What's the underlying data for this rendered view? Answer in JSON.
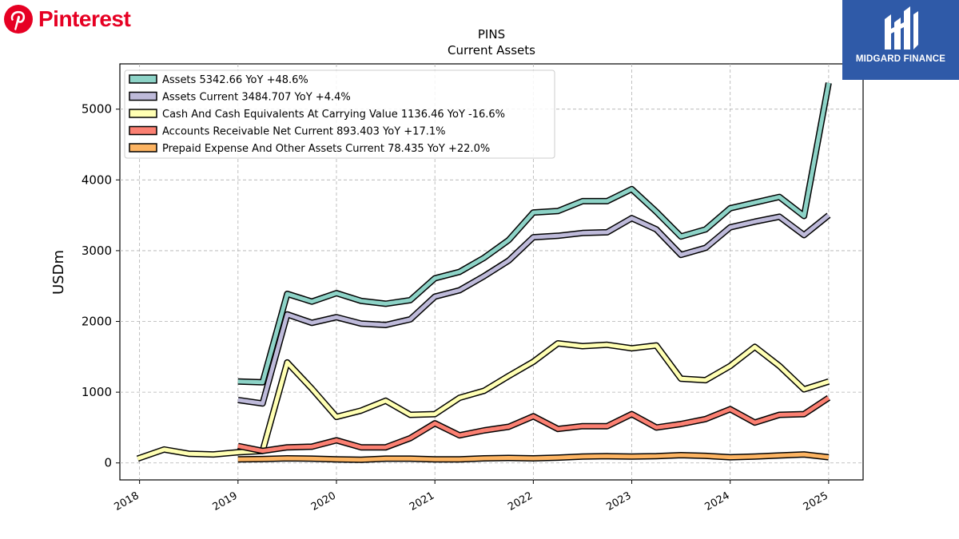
{
  "brand": {
    "name": "Pinterest",
    "color": "#e60023",
    "icon": "pinterest-logo-icon"
  },
  "badge": {
    "text": "MIDGARD FINANCE",
    "color": "#2f5aa8",
    "icon": "midgard-logo-icon"
  },
  "chart_data": {
    "type": "line",
    "title": "PINS",
    "subtitle": "Current  Assets",
    "ylabel": "USDm",
    "xlabel": "",
    "ylim": [
      -240,
      5640
    ],
    "xlim": [
      2017.8,
      2025.35
    ],
    "yticks": [
      0,
      1000,
      2000,
      3000,
      4000,
      5000
    ],
    "xticks": [
      2018,
      2019,
      2020,
      2021,
      2022,
      2023,
      2024,
      2025
    ],
    "xtick_labels": [
      "2018",
      "2019",
      "2020",
      "2021",
      "2022",
      "2023",
      "2024",
      "2025"
    ],
    "grid": true,
    "legend_position": "top-left",
    "series": [
      {
        "name": "Assets",
        "legend": "Assets  5342.66 YoY +48.6%",
        "color": "#8dd3c7",
        "points": [
          [
            2019.0,
            1150
          ],
          [
            2019.25,
            1140
          ],
          [
            2019.5,
            2390
          ],
          [
            2019.75,
            2280
          ],
          [
            2020.0,
            2400
          ],
          [
            2020.25,
            2290
          ],
          [
            2020.5,
            2250
          ],
          [
            2020.75,
            2300
          ],
          [
            2021.0,
            2610
          ],
          [
            2021.25,
            2700
          ],
          [
            2021.5,
            2900
          ],
          [
            2021.75,
            3150
          ],
          [
            2022.0,
            3540
          ],
          [
            2022.25,
            3560
          ],
          [
            2022.5,
            3700
          ],
          [
            2022.75,
            3700
          ],
          [
            2023.0,
            3870
          ],
          [
            2023.25,
            3550
          ],
          [
            2023.5,
            3200
          ],
          [
            2023.75,
            3300
          ],
          [
            2024.0,
            3600
          ],
          [
            2024.25,
            3680
          ],
          [
            2024.5,
            3760
          ],
          [
            2024.75,
            3490
          ],
          [
            2025.0,
            5370
          ]
        ]
      },
      {
        "name": "Assets Current",
        "legend": "Assets Current  3484.707 YoY +4.4%",
        "color": "#bebada",
        "points": [
          [
            2019.0,
            890
          ],
          [
            2019.25,
            840
          ],
          [
            2019.5,
            2100
          ],
          [
            2019.75,
            1980
          ],
          [
            2020.0,
            2060
          ],
          [
            2020.25,
            1970
          ],
          [
            2020.5,
            1950
          ],
          [
            2020.75,
            2030
          ],
          [
            2021.0,
            2350
          ],
          [
            2021.25,
            2440
          ],
          [
            2021.5,
            2640
          ],
          [
            2021.75,
            2860
          ],
          [
            2022.0,
            3190
          ],
          [
            2022.25,
            3210
          ],
          [
            2022.5,
            3250
          ],
          [
            2022.75,
            3260
          ],
          [
            2023.0,
            3460
          ],
          [
            2023.25,
            3300
          ],
          [
            2023.5,
            2940
          ],
          [
            2023.75,
            3040
          ],
          [
            2024.0,
            3330
          ],
          [
            2024.25,
            3410
          ],
          [
            2024.5,
            3480
          ],
          [
            2024.75,
            3220
          ],
          [
            2025.0,
            3500
          ]
        ]
      },
      {
        "name": "Cash And Cash Equivalents At Carrying Value",
        "legend": "Cash And Cash Equivalents At Carrying Value  1136.46 YoY -16.6%",
        "color": "#ffffb3",
        "points": [
          [
            2017.98,
            60
          ],
          [
            2018.25,
            190
          ],
          [
            2018.5,
            130
          ],
          [
            2018.75,
            120
          ],
          [
            2019.0,
            150
          ],
          [
            2019.25,
            170
          ],
          [
            2019.5,
            1420
          ],
          [
            2019.75,
            1050
          ],
          [
            2020.0,
            650
          ],
          [
            2020.25,
            740
          ],
          [
            2020.5,
            880
          ],
          [
            2020.75,
            680
          ],
          [
            2021.0,
            690
          ],
          [
            2021.25,
            920
          ],
          [
            2021.5,
            1020
          ],
          [
            2021.75,
            1230
          ],
          [
            2022.0,
            1430
          ],
          [
            2022.25,
            1690
          ],
          [
            2022.5,
            1650
          ],
          [
            2022.75,
            1670
          ],
          [
            2023.0,
            1620
          ],
          [
            2023.25,
            1660
          ],
          [
            2023.5,
            1190
          ],
          [
            2023.75,
            1170
          ],
          [
            2024.0,
            1370
          ],
          [
            2024.25,
            1640
          ],
          [
            2024.5,
            1370
          ],
          [
            2024.75,
            1040
          ],
          [
            2025.0,
            1150
          ]
        ]
      },
      {
        "name": "Accounts Receivable Net Current",
        "legend": "Accounts Receivable Net Current  893.403 YoY +17.1%",
        "color": "#fb8072",
        "points": [
          [
            2019.0,
            240
          ],
          [
            2019.25,
            170
          ],
          [
            2019.5,
            220
          ],
          [
            2019.75,
            230
          ],
          [
            2020.0,
            320
          ],
          [
            2020.25,
            220
          ],
          [
            2020.5,
            220
          ],
          [
            2020.75,
            350
          ],
          [
            2021.0,
            560
          ],
          [
            2021.25,
            390
          ],
          [
            2021.5,
            460
          ],
          [
            2021.75,
            510
          ],
          [
            2022.0,
            660
          ],
          [
            2022.25,
            480
          ],
          [
            2022.5,
            520
          ],
          [
            2022.75,
            520
          ],
          [
            2023.0,
            690
          ],
          [
            2023.25,
            500
          ],
          [
            2023.5,
            550
          ],
          [
            2023.75,
            620
          ],
          [
            2024.0,
            760
          ],
          [
            2024.25,
            570
          ],
          [
            2024.5,
            680
          ],
          [
            2024.75,
            690
          ],
          [
            2025.0,
            920
          ]
        ]
      },
      {
        "name": "Prepaid Expense And Other Assets Current",
        "legend": "Prepaid Expense And Other Assets Current  78.435 YoY +22.0%",
        "color": "#fdb462",
        "points": [
          [
            2019.0,
            50
          ],
          [
            2019.25,
            55
          ],
          [
            2019.5,
            65
          ],
          [
            2019.75,
            60
          ],
          [
            2020.0,
            50
          ],
          [
            2020.25,
            45
          ],
          [
            2020.5,
            60
          ],
          [
            2020.75,
            60
          ],
          [
            2021.0,
            50
          ],
          [
            2021.25,
            50
          ],
          [
            2021.5,
            65
          ],
          [
            2021.75,
            70
          ],
          [
            2022.0,
            65
          ],
          [
            2022.25,
            75
          ],
          [
            2022.5,
            90
          ],
          [
            2022.75,
            95
          ],
          [
            2023.0,
            90
          ],
          [
            2023.25,
            95
          ],
          [
            2023.5,
            110
          ],
          [
            2023.75,
            100
          ],
          [
            2024.0,
            80
          ],
          [
            2024.25,
            90
          ],
          [
            2024.5,
            105
          ],
          [
            2024.75,
            120
          ],
          [
            2025.0,
            80
          ]
        ]
      }
    ]
  }
}
